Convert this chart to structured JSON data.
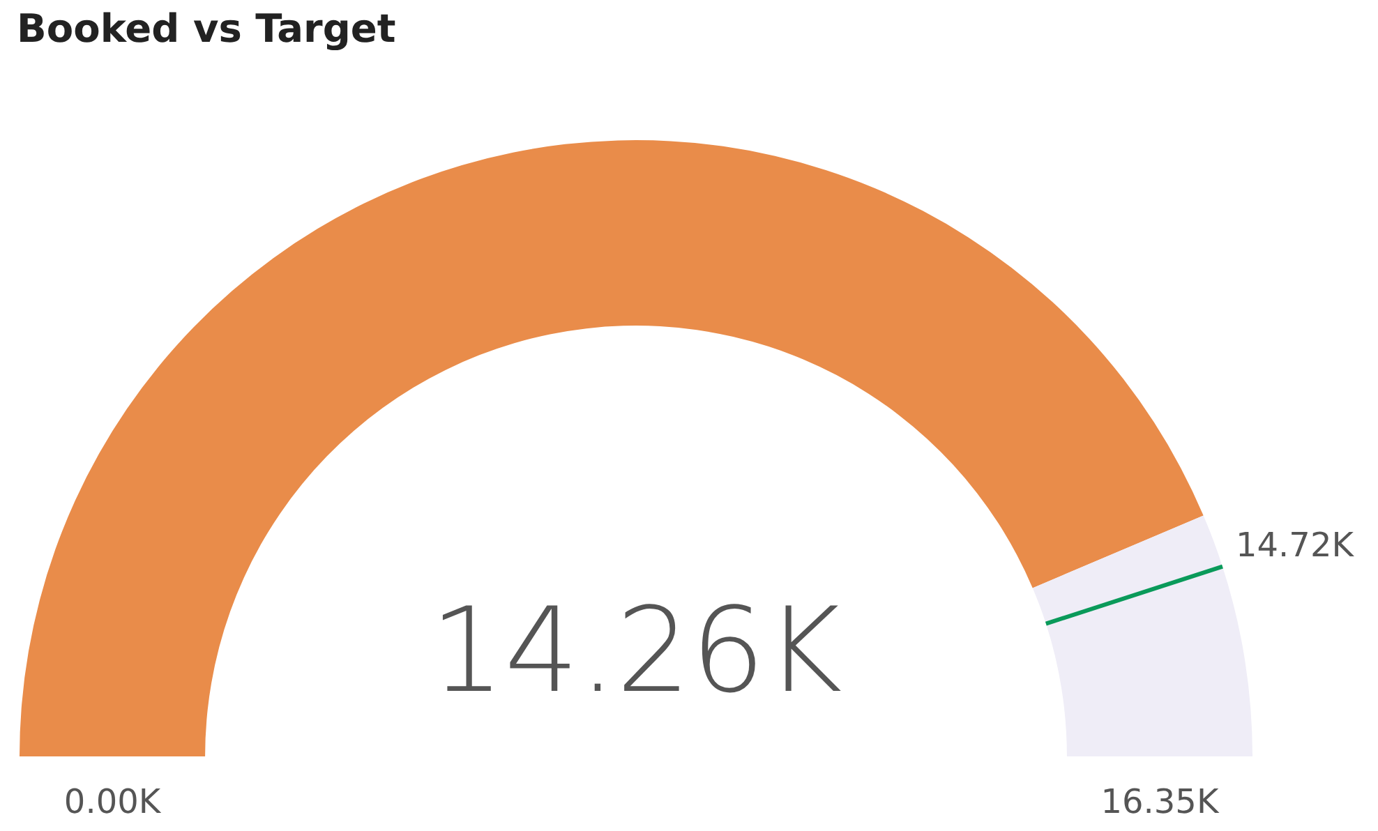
{
  "chart_data": {
    "type": "donut",
    "title": "Booked vs Target",
    "categories": [
      null,
      null,
      null
    ],
    "values": [
      14.26,
      0.46,
      1.63
    ],
    "value_labels": [
      "14.26K",
      null,
      null
    ],
    "colors": [
      "#e98c4a",
      "#efedf7",
      "#efedf7"
    ],
    "annotations": [
      "0.00K",
      "16.35K",
      "14.72K"
    ]
  }
}
